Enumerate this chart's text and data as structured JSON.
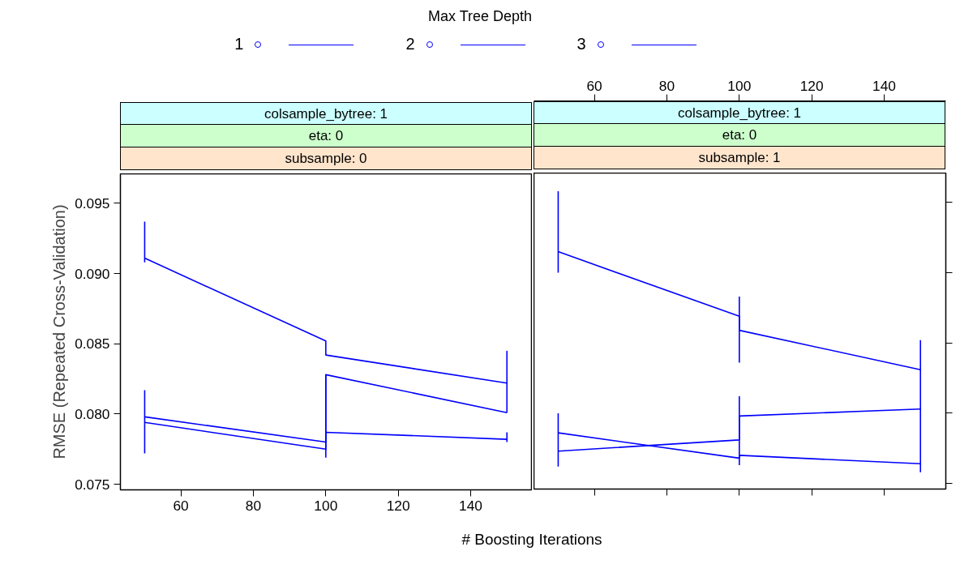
{
  "chart_data": [
    {
      "type": "line",
      "legend_title": "Max Tree Depth",
      "legend": "top",
      "ylabel": "RMSE (Repeated Cross-Validation)",
      "xlabel": "# Boosting Iterations",
      "annotations": [
        "colsample_bytree: 1",
        "eta: 0",
        "subsample: 0"
      ],
      "xlim": [
        43.3,
        157
      ],
      "ylim": [
        0.0746,
        0.0971
      ],
      "xticks": [
        60,
        80,
        100,
        120,
        140
      ],
      "yticks": [
        {
          "value": 0.075,
          "label": "0.075"
        },
        {
          "value": 0.08,
          "label": "0.080"
        },
        {
          "value": 0.085,
          "label": "0.085"
        },
        {
          "value": 0.09,
          "label": "0.090"
        },
        {
          "value": 0.095,
          "label": "0.095"
        }
      ],
      "series": [
        {
          "name": "1",
          "color": "#0000ff",
          "x": [
            50,
            100,
            100,
            150
          ],
          "values": [
            0.0911,
            0.0852,
            0.0842,
            0.0822
          ],
          "errors": [
            [
              0.0908,
              0.0937
            ],
            null,
            null,
            [
              0.0801,
              0.0845
            ]
          ]
        },
        {
          "name": "2",
          "color": "#0000ff",
          "x": [
            50,
            100,
            100,
            150
          ],
          "values": [
            0.0798,
            0.078,
            0.0828,
            0.0801
          ],
          "errors": [
            [
              0.0772,
              0.0817
            ],
            null,
            [
              0.0769,
              0.0828
            ],
            null
          ]
        },
        {
          "name": "3",
          "color": "#0000ff",
          "x": [
            50,
            100,
            100,
            150
          ],
          "values": [
            0.0794,
            0.0775,
            0.0787,
            0.0782
          ],
          "errors": [
            null,
            null,
            null,
            [
              0.078,
              0.0787
            ]
          ]
        }
      ]
    },
    {
      "type": "line",
      "tick_labels": "x",
      "annotations": [
        "colsample_bytree: 1",
        "eta: 0",
        "subsample: 1"
      ],
      "xlim": [
        43.3,
        157
      ],
      "ylim": [
        0.0746,
        0.0971
      ],
      "xticks": [
        60,
        80,
        100,
        120,
        140
      ],
      "yticks": [
        0.075,
        0.08,
        0.085,
        0.09,
        0.095
      ],
      "series": [
        {
          "color": "#0000ff",
          "x": [
            50,
            100,
            100,
            150
          ],
          "values": [
            0.0915,
            0.0869,
            0.0859,
            0.0831
          ],
          "errors": [
            [
              0.09,
              0.0958
            ],
            [
              0.0836,
              0.0883
            ],
            null,
            [
              0.0758,
              0.0852
            ]
          ]
        },
        {
          "color": "#0000ff",
          "x": [
            50,
            100,
            100,
            150
          ],
          "values": [
            0.0786,
            0.0768,
            0.077,
            0.0764
          ],
          "errors": [
            [
              0.0762,
              0.08
            ],
            null,
            null,
            null
          ]
        },
        {
          "color": "#0000ff",
          "x": [
            50,
            100,
            100,
            150
          ],
          "values": [
            0.0773,
            0.0781,
            0.0798,
            0.0803
          ],
          "errors": [
            null,
            [
              0.0763,
              0.0812
            ],
            null,
            null
          ]
        }
      ]
    }
  ]
}
